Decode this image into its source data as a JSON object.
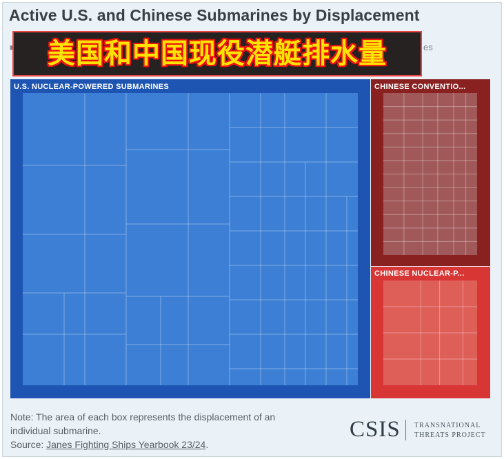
{
  "header": {
    "title": "Active U.S. and Chinese Submarines by Displacement",
    "legend_fragment_left": "■",
    "legend_fragment_right": "es"
  },
  "overlay": {
    "caption": "美国和中国现役潜艇排水量"
  },
  "colors": {
    "us_nuclear": "#1e55b3",
    "us_nuclear_cell": "#3c7fd4",
    "cn_conventional": "#8a2121",
    "cn_conventional_cell": "#a05858",
    "cn_nuclear": "#d83535",
    "cn_nuclear_cell": "#de5f58"
  },
  "chart_data": {
    "type": "treemap",
    "groups": [
      {
        "name": "U.S. NUCLEAR-POWERED SUBMARINES",
        "share": 0.755
      },
      {
        "name": "CHINESE CONVENTIO...",
        "share": 0.145
      },
      {
        "name": "CHINESE NUCLEAR-P...",
        "share": 0.1
      }
    ]
  },
  "footer": {
    "note_line1": "Note: The area of each box represents the displacement of an",
    "note_line2": "individual submarine.",
    "source_prefix": "Source: ",
    "source_link": "Janes Fighting Ships Yearbook 23/24",
    "source_suffix": "."
  },
  "logo": {
    "name": "CSIS",
    "sub_line1": "TRANSNATIONAL",
    "sub_line2": "THREATS PROJECT"
  }
}
